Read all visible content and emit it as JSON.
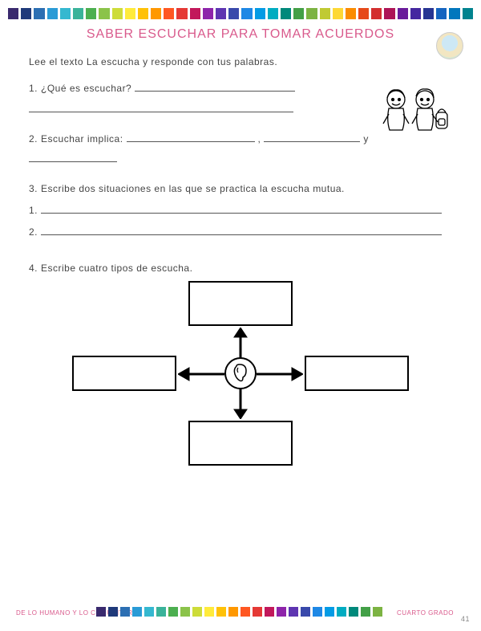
{
  "title": "SABER ESCUCHAR PARA TOMAR ACUERDOS",
  "instruction": "Lee el texto La escucha y responde con tus palabras.",
  "q1": {
    "num": "1.",
    "text": "¿Qué es escuchar?"
  },
  "q2": {
    "num": "2.",
    "text": "Escuchar implica:",
    "sep": ",",
    "tail": "y"
  },
  "q3": {
    "num": "3.",
    "text": "Escribe dos situaciones en las que se practica la escucha mutua.",
    "a": "1.",
    "b": "2."
  },
  "q4": {
    "num": "4.",
    "text": "Escribe cuatro tipos de escucha."
  },
  "footer": {
    "left": "DE LO HUMANO Y LO COMUNITARIO",
    "right": "CUARTO GRADO",
    "page": "41"
  },
  "strip_colors": [
    "#3a2a6e",
    "#1f3a7a",
    "#2c6fb3",
    "#2a9bd6",
    "#35b8d0",
    "#3ab39a",
    "#4caf50",
    "#8bc34a",
    "#cddc39",
    "#ffeb3b",
    "#ffc107",
    "#ff9800",
    "#ff5722",
    "#e53935",
    "#c2185b",
    "#8e24aa",
    "#5e35b1",
    "#3949ab",
    "#1e88e5",
    "#039be5",
    "#00acc1",
    "#00897b",
    "#43a047",
    "#7cb342",
    "#c0ca33",
    "#fdd835",
    "#fb8c00",
    "#e64a19",
    "#d32f2f",
    "#ad1457",
    "#6a1b9a",
    "#4527a0",
    "#283593",
    "#1565c0",
    "#0277bd",
    "#00838f"
  ],
  "bottom_strip_colors": [
    "#3a2a6e",
    "#1f3a7a",
    "#2c6fb3",
    "#2a9bd6",
    "#35b8d0",
    "#3ab39a",
    "#4caf50",
    "#8bc34a",
    "#cddc39",
    "#ffeb3b",
    "#ffc107",
    "#ff9800",
    "#ff5722",
    "#e53935",
    "#c2185b",
    "#8e24aa",
    "#5e35b1",
    "#3949ab",
    "#1e88e5",
    "#039be5",
    "#00acc1",
    "#00897b",
    "#43a047",
    "#7cb342"
  ],
  "styling": {
    "title_color": "#d95a8c",
    "text_color": "#444444",
    "box_border": "#000000",
    "background": "#ffffff",
    "title_fontsize": 16,
    "body_fontsize": 12
  },
  "diagram": {
    "type": "flowchart",
    "center_icon": "ear",
    "boxes": [
      "top",
      "right",
      "bottom",
      "left"
    ],
    "box_border_color": "#000000",
    "box_border_width": 2
  }
}
